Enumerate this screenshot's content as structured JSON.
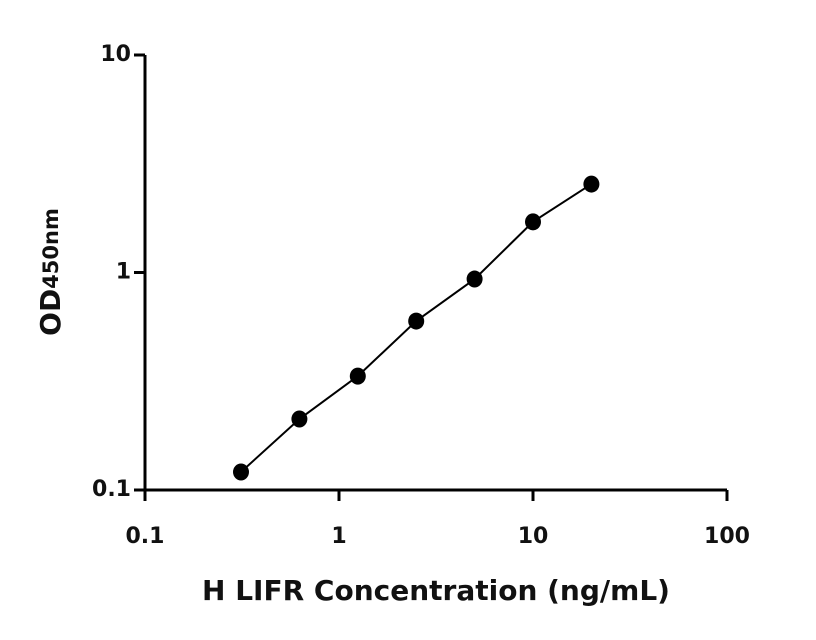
{
  "chart_data": {
    "type": "scatter",
    "xlabel": "H LIFR Concentration (ng/mL)",
    "ylabel": [
      "OD",
      "450nm"
    ],
    "xscale": "log",
    "yscale": "log",
    "xlim": [
      0.1,
      100
    ],
    "ylim": [
      0.1,
      10
    ],
    "xticks": [
      0.1,
      1,
      10,
      100
    ],
    "yticks": [
      0.1,
      1,
      10
    ],
    "fit_line": true,
    "series": [
      {
        "color": "#000000",
        "x": [
          0.3125,
          0.625,
          1.25,
          2.5,
          5,
          10,
          20
        ],
        "values": [
          0.121,
          0.212,
          0.334,
          0.598,
          0.933,
          1.71,
          2.55
        ]
      }
    ]
  }
}
